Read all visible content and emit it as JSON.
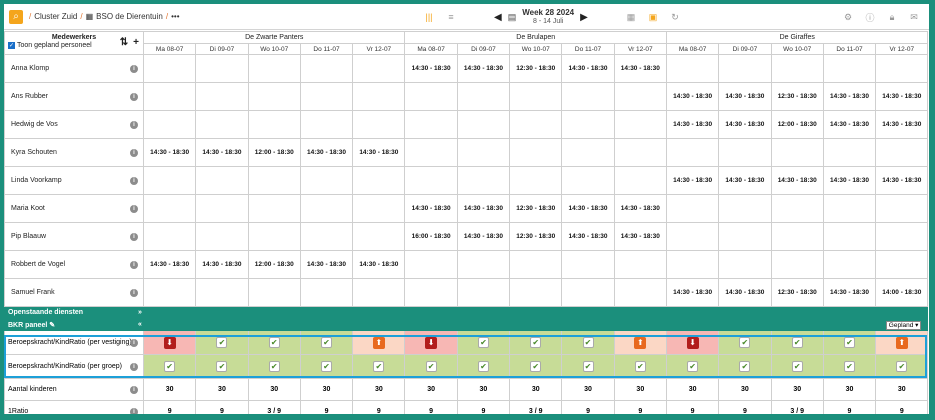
{
  "toolbar": {
    "breadcrumb": [
      "Cluster Zuid",
      "BSO de Dierentuin"
    ],
    "more": "•••",
    "week_title": "Week 28 2024",
    "week_range": "8 - 14 Juli"
  },
  "header": {
    "employees_label": "Medewerkers",
    "show_planned_label": "Toon gepland personeel",
    "groups": [
      "De Zwarte Panters",
      "De Brulapen",
      "De Giraffes"
    ],
    "days": [
      "Ma 08-07",
      "Di 09-07",
      "Wo 10-07",
      "Do 11-07",
      "Vr 12-07"
    ]
  },
  "employees": [
    {
      "name": "Anna Klomp",
      "shifts": [
        "",
        "",
        "",
        "",
        "",
        "14:30 - 18:30",
        "14:30 - 18:30",
        "12:30 - 18:30",
        "14:30 - 18:30",
        "14:30 - 18:30",
        "",
        "",
        "",
        "",
        ""
      ]
    },
    {
      "name": "Ans Rubber",
      "shifts": [
        "",
        "",
        "",
        "",
        "",
        "",
        "",
        "",
        "",
        "",
        "14:30 - 18:30",
        "14:30 - 18:30",
        "12:30 - 18:30",
        "14:30 - 18:30",
        "14:30 - 18:30"
      ]
    },
    {
      "name": "Hedwig de Vos",
      "shifts": [
        "",
        "",
        "",
        "",
        "",
        "",
        "",
        "",
        "",
        "",
        "14:30 - 18:30",
        "14:30 - 18:30",
        "12:00 - 18:30",
        "14:30 - 18:30",
        "14:30 - 18:30"
      ]
    },
    {
      "name": "Kyra Schouten",
      "shifts": [
        "14:30 - 18:30",
        "14:30 - 18:30",
        "12:00 - 18:30",
        "14:30 - 18:30",
        "14:30 - 18:30",
        "",
        "",
        "",
        "",
        "",
        "",
        "",
        "",
        "",
        ""
      ]
    },
    {
      "name": "Linda Voorkamp",
      "shifts": [
        "",
        "",
        "",
        "",
        "",
        "",
        "",
        "",
        "",
        "",
        "14:30 - 18:30",
        "14:30 - 18:30",
        "14:30 - 18:30",
        "14:30 - 18:30",
        "14:30 - 18:30"
      ]
    },
    {
      "name": "Maria Koot",
      "shifts": [
        "",
        "",
        "",
        "",
        "",
        "14:30 - 18:30",
        "14:30 - 18:30",
        "12:30 - 18:30",
        "14:30 - 18:30",
        "14:30 - 18:30",
        "",
        "",
        "",
        "",
        ""
      ]
    },
    {
      "name": "Pip Blaauw",
      "shifts": [
        "",
        "",
        "",
        "",
        "",
        "16:00 - 18:30",
        "14:30 - 18:30",
        "12:30 - 18:30",
        "14:30 - 18:30",
        "14:30 - 18:30",
        "",
        "",
        "",
        "",
        ""
      ]
    },
    {
      "name": "Robbert de Vogel",
      "shifts": [
        "14:30 - 18:30",
        "14:30 - 18:30",
        "12:00 - 18:30",
        "14:30 - 18:30",
        "14:30 - 18:30",
        "",
        "",
        "",
        "",
        "",
        "",
        "",
        "",
        "",
        ""
      ]
    },
    {
      "name": "Samuel Frank",
      "shifts": [
        "",
        "",
        "",
        "",
        "",
        "",
        "",
        "",
        "",
        "",
        "14:30 - 18:30",
        "14:30 - 18:30",
        "12:30 - 18:30",
        "14:30 - 18:30",
        "14:00 - 18:30"
      ]
    }
  ],
  "sections": {
    "open_shifts": "Openstaande diensten",
    "bkr_panel": "BKR paneel",
    "bkr_select": "Gepland"
  },
  "bkr_rows": [
    {
      "label": "Beroepskracht/KindRatio (per vestiging)",
      "status": [
        "bad",
        "ok",
        "ok",
        "ok",
        "warn",
        "bad",
        "ok",
        "ok",
        "ok",
        "warn",
        "bad",
        "ok",
        "ok",
        "ok",
        "warn"
      ]
    },
    {
      "label": "Beroepskracht/KindRatio (per groep)",
      "status": [
        "ok",
        "ok",
        "ok",
        "ok",
        "ok",
        "ok",
        "ok",
        "ok",
        "ok",
        "ok",
        "ok",
        "ok",
        "ok",
        "ok",
        "ok"
      ]
    }
  ],
  "stats": [
    {
      "label": "Aantal kinderen",
      "values": [
        "30",
        "30",
        "30",
        "30",
        "30",
        "30",
        "30",
        "30",
        "30",
        "30",
        "30",
        "30",
        "30",
        "30",
        "30"
      ]
    },
    {
      "label": "1Ratio",
      "values": [
        "9",
        "9",
        "3 / 9",
        "9",
        "9",
        "9",
        "9",
        "3 / 9",
        "9",
        "9",
        "9",
        "9",
        "3 / 9",
        "9",
        "9"
      ]
    }
  ]
}
